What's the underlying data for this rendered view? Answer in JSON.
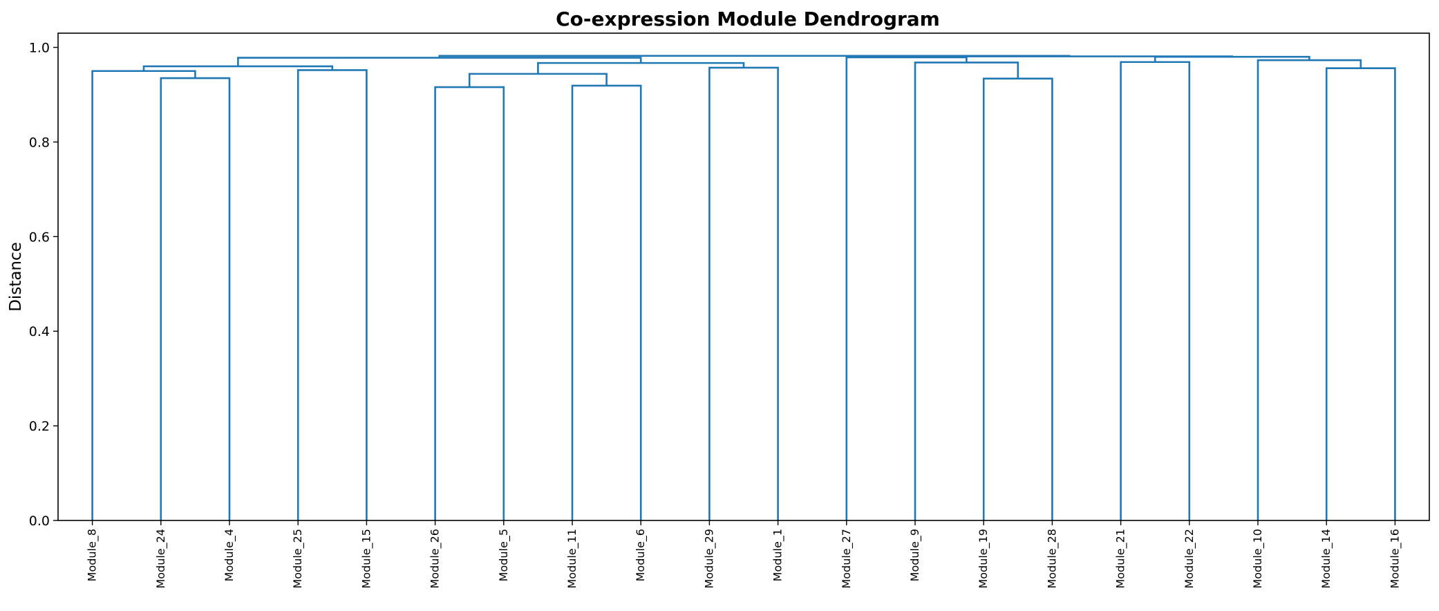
{
  "chart_data": {
    "type": "dendrogram",
    "title": "Co-expression Module Dendrogram",
    "xlabel": "",
    "ylabel": "Distance",
    "ylim": [
      0,
      1.03
    ],
    "yticks": [
      0.0,
      0.2,
      0.4,
      0.6,
      0.8,
      1.0
    ],
    "ytick_labels": [
      "0.0",
      "0.2",
      "0.4",
      "0.6",
      "0.8",
      "1.0"
    ],
    "grid": false,
    "link_color": "#1f77b4",
    "leaves": [
      "Module_8",
      "Module_24",
      "Module_4",
      "Module_25",
      "Module_15",
      "Module_26",
      "Module_5",
      "Module_11",
      "Module_6",
      "Module_29",
      "Module_1",
      "Module_27",
      "Module_9",
      "Module_19",
      "Module_28",
      "Module_21",
      "Module_22",
      "Module_10",
      "Module_14",
      "Module_16"
    ],
    "merges": [
      {
        "id": "c1",
        "left": "Module_26",
        "right": "Module_5",
        "height": 0.916
      },
      {
        "id": "c2",
        "left": "Module_11",
        "right": "Module_6",
        "height": 0.919
      },
      {
        "id": "c3",
        "left": "Module_19",
        "right": "Module_28",
        "height": 0.934
      },
      {
        "id": "c4",
        "left": "Module_24",
        "right": "Module_4",
        "height": 0.935
      },
      {
        "id": "c5",
        "left": "c1",
        "right": "c2",
        "height": 0.944
      },
      {
        "id": "c6",
        "left": "Module_8",
        "right": "c4",
        "height": 0.95
      },
      {
        "id": "c7",
        "left": "Module_25",
        "right": "Module_15",
        "height": 0.952
      },
      {
        "id": "c8",
        "left": "Module_14",
        "right": "Module_16",
        "height": 0.956
      },
      {
        "id": "c9",
        "left": "Module_29",
        "right": "Module_1",
        "height": 0.957
      },
      {
        "id": "c10",
        "left": "c6",
        "right": "c7",
        "height": 0.96
      },
      {
        "id": "c11",
        "left": "c5",
        "right": "c9",
        "height": 0.967
      },
      {
        "id": "c12",
        "left": "Module_9",
        "right": "c3",
        "height": 0.968
      },
      {
        "id": "c13",
        "left": "Module_21",
        "right": "Module_22",
        "height": 0.969
      },
      {
        "id": "c14",
        "left": "Module_10",
        "right": "c8",
        "height": 0.973
      },
      {
        "id": "c15",
        "left": "c10",
        "right": "c11",
        "height": 0.978
      },
      {
        "id": "c16",
        "left": "Module_27",
        "right": "c12",
        "height": 0.979
      },
      {
        "id": "c17",
        "left": "c13",
        "right": "c14",
        "height": 0.98
      },
      {
        "id": "c18",
        "left": "c16",
        "right": "c17",
        "height": 0.981
      },
      {
        "id": "c19",
        "left": "c15",
        "right": "c18",
        "height": 0.982
      }
    ]
  }
}
